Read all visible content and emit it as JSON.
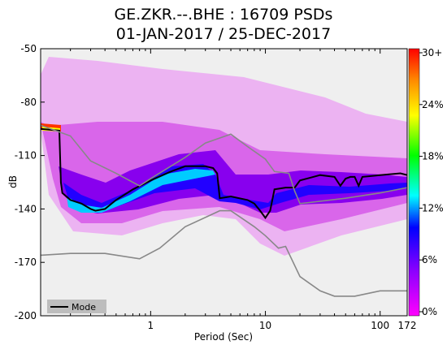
{
  "chart_data": {
    "type": "heatmap",
    "title": "GE.ZKR.--.BHE : 16709 PSDs",
    "subtitle": "01-JAN-2017 / 25-DEC-2017",
    "xlabel": "Period (Sec)",
    "ylabel": "dB",
    "xscale": "log",
    "xlim": [
      0.11,
      172
    ],
    "ylim": [
      -200,
      -50
    ],
    "xticks": [
      {
        "v": 1,
        "label": "1"
      },
      {
        "v": 10,
        "label": "10"
      },
      {
        "v": 100,
        "label": "100"
      },
      {
        "v": 172,
        "label": "172"
      }
    ],
    "yticks": [
      -50,
      -80,
      -110,
      -140,
      -170,
      -200
    ],
    "colorbar": {
      "ticks": [
        "30+",
        "24%",
        "18%",
        "12%",
        "6%",
        "0%"
      ],
      "colors": [
        "#ff0000",
        "#ff8c00",
        "#ffff00",
        "#00ff00",
        "#00ffff",
        "#0000ff",
        "#8a00ff",
        "#ff00ff"
      ]
    },
    "legend": {
      "location": "lower-left",
      "label": "Mode"
    },
    "series": [
      {
        "name": "Mode",
        "color": "#000000",
        "points": [
          [
            0.11,
            -95
          ],
          [
            0.16,
            -96
          ],
          [
            0.165,
            -125
          ],
          [
            0.17,
            -131
          ],
          [
            0.2,
            -135
          ],
          [
            0.25,
            -137
          ],
          [
            0.3,
            -140
          ],
          [
            0.33,
            -141
          ],
          [
            0.4,
            -140
          ],
          [
            0.5,
            -135
          ],
          [
            0.7,
            -129
          ],
          [
            1,
            -124
          ],
          [
            1.5,
            -119
          ],
          [
            2,
            -116
          ],
          [
            3,
            -116
          ],
          [
            3.5,
            -117
          ],
          [
            3.8,
            -120
          ],
          [
            4,
            -134
          ],
          [
            5,
            -133
          ],
          [
            7,
            -135
          ],
          [
            8,
            -137
          ],
          [
            9,
            -141
          ],
          [
            10,
            -145
          ],
          [
            11,
            -141
          ],
          [
            12,
            -129
          ],
          [
            15,
            -128
          ],
          [
            18,
            -128
          ],
          [
            20,
            -124
          ],
          [
            30,
            -121
          ],
          [
            40,
            -122
          ],
          [
            45,
            -127
          ],
          [
            50,
            -123
          ],
          [
            55,
            -122
          ],
          [
            60,
            -122
          ],
          [
            65,
            -127
          ],
          [
            70,
            -122
          ],
          [
            100,
            -121
          ],
          [
            150,
            -120
          ],
          [
            172,
            -121
          ]
        ]
      },
      {
        "color": "#888888",
        "points": [
          [
            0.11,
            -93
          ],
          [
            0.2,
            -99
          ],
          [
            0.3,
            -113
          ],
          [
            0.5,
            -120
          ],
          [
            0.8,
            -127
          ],
          [
            1,
            -123
          ],
          [
            2,
            -111
          ],
          [
            3,
            -103
          ],
          [
            5,
            -98
          ],
          [
            7,
            -105
          ],
          [
            10,
            -112
          ],
          [
            12,
            -119
          ],
          [
            16,
            -120
          ],
          [
            18,
            -130
          ],
          [
            20,
            -137
          ],
          [
            50,
            -134
          ],
          [
            100,
            -131
          ],
          [
            172,
            -128
          ]
        ]
      },
      {
        "color": "#888888",
        "points": [
          [
            0.11,
            -166
          ],
          [
            0.2,
            -165
          ],
          [
            0.4,
            -165
          ],
          [
            0.8,
            -168
          ],
          [
            1.2,
            -162
          ],
          [
            2,
            -150
          ],
          [
            4,
            -141
          ],
          [
            5,
            -141
          ],
          [
            8,
            -150
          ],
          [
            10,
            -155
          ],
          [
            13,
            -162
          ],
          [
            15,
            -161
          ],
          [
            20,
            -178
          ],
          [
            30,
            -186
          ],
          [
            40,
            -189
          ],
          [
            60,
            -189
          ],
          [
            100,
            -186
          ],
          [
            172,
            -186
          ]
        ]
      }
    ]
  }
}
